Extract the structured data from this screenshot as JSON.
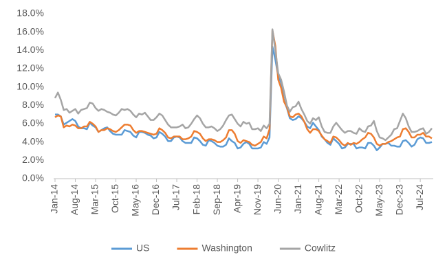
{
  "chart_data": {
    "type": "line",
    "categories": [
      "Jan-14",
      null,
      null,
      null,
      null,
      null,
      null,
      "Aug-14",
      null,
      null,
      null,
      null,
      null,
      null,
      "Mar-15",
      null,
      null,
      null,
      null,
      null,
      null,
      "Oct-15",
      null,
      null,
      null,
      null,
      null,
      null,
      "May-16",
      null,
      null,
      null,
      null,
      null,
      null,
      "Dec-16",
      null,
      null,
      null,
      null,
      null,
      null,
      "Jul-17",
      null,
      null,
      null,
      null,
      null,
      null,
      "Feb-18",
      null,
      null,
      null,
      null,
      null,
      null,
      "Sep-18",
      null,
      null,
      null,
      null,
      null,
      null,
      "Apr-19",
      null,
      null,
      null,
      null,
      null,
      null,
      "Nov-19",
      null,
      null,
      null,
      null,
      null,
      null,
      "Jun-20",
      null,
      null,
      null,
      null,
      null,
      null,
      "Jan-21",
      null,
      null,
      null,
      null,
      null,
      null,
      "Aug-21",
      null,
      null,
      null,
      null,
      null,
      null,
      "Mar-22",
      null,
      null,
      null,
      null,
      null,
      null,
      "Oct-22",
      null,
      null,
      null,
      null,
      null,
      null,
      "May-23",
      null,
      null,
      null,
      null,
      null,
      null,
      "Dec-23",
      null,
      null,
      null,
      null,
      null,
      null,
      "Jul-24",
      null,
      null,
      null,
      null
    ],
    "series": [
      {
        "name": "US",
        "color": "#5b9bd5",
        "values": [
          7.0,
          7.0,
          6.8,
          5.9,
          6.1,
          6.3,
          6.5,
          6.3,
          5.7,
          5.5,
          5.5,
          5.4,
          6.1,
          5.8,
          5.6,
          5.1,
          5.3,
          5.5,
          5.6,
          5.2,
          4.9,
          4.8,
          4.8,
          4.8,
          5.3,
          5.2,
          5.1,
          4.7,
          4.5,
          5.1,
          5.1,
          5.0,
          4.8,
          4.7,
          4.4,
          4.5,
          5.1,
          4.9,
          4.6,
          4.1,
          4.1,
          4.5,
          4.6,
          4.5,
          4.1,
          3.9,
          3.9,
          3.9,
          4.5,
          4.4,
          4.1,
          3.7,
          3.6,
          4.2,
          4.1,
          3.9,
          3.6,
          3.5,
          3.5,
          3.7,
          4.4,
          4.1,
          3.9,
          3.3,
          3.4,
          3.8,
          4.0,
          3.8,
          3.3,
          3.3,
          3.3,
          3.4,
          4.0,
          3.8,
          4.5,
          14.4,
          13.0,
          11.2,
          10.5,
          8.5,
          7.7,
          6.6,
          6.4,
          6.5,
          6.8,
          6.6,
          6.2,
          5.7,
          5.5,
          6.1,
          5.7,
          5.3,
          4.6,
          4.3,
          3.9,
          3.7,
          4.4,
          4.1,
          3.8,
          3.3,
          3.4,
          3.8,
          3.8,
          3.8,
          3.3,
          3.4,
          3.4,
          3.3,
          3.9,
          3.9,
          3.6,
          3.1,
          3.4,
          3.8,
          3.8,
          3.9,
          3.6,
          3.6,
          3.5,
          3.5,
          4.1,
          4.2,
          3.9,
          3.5,
          3.7,
          4.3,
          4.5,
          4.4,
          3.9,
          3.9,
          4.0
        ]
      },
      {
        "name": "Washington",
        "color": "#ed7d31",
        "values": [
          6.7,
          6.9,
          6.8,
          5.6,
          5.8,
          5.7,
          5.9,
          5.8,
          5.5,
          5.5,
          5.7,
          5.7,
          6.2,
          6.0,
          5.7,
          5.1,
          5.3,
          5.3,
          5.5,
          5.4,
          5.2,
          5.1,
          5.3,
          5.6,
          5.9,
          5.9,
          5.8,
          5.3,
          5.0,
          5.2,
          5.2,
          5.1,
          5.0,
          4.9,
          4.8,
          4.9,
          5.5,
          5.3,
          5.0,
          4.5,
          4.4,
          4.6,
          4.6,
          4.6,
          4.3,
          4.3,
          4.4,
          4.6,
          5.2,
          5.1,
          4.9,
          4.4,
          4.1,
          4.3,
          4.3,
          4.2,
          4.0,
          4.0,
          4.2,
          4.5,
          5.3,
          5.3,
          4.9,
          4.1,
          3.9,
          4.2,
          4.1,
          4.0,
          3.7,
          3.6,
          3.8,
          4.0,
          4.6,
          4.4,
          5.4,
          16.2,
          14.5,
          10.8,
          9.9,
          8.4,
          7.8,
          6.8,
          6.7,
          7.0,
          7.1,
          6.8,
          6.2,
          5.4,
          5.0,
          5.4,
          5.4,
          5.2,
          4.7,
          4.3,
          4.1,
          3.9,
          4.6,
          4.5,
          4.2,
          3.8,
          3.6,
          3.9,
          3.7,
          3.9,
          3.8,
          4.0,
          4.3,
          4.5,
          5.0,
          4.9,
          4.5,
          3.8,
          3.6,
          3.8,
          3.8,
          4.0,
          4.1,
          4.3,
          4.5,
          4.6,
          5.4,
          5.5,
          5.1,
          4.5,
          4.5,
          4.8,
          4.8,
          5.0,
          4.6,
          4.6,
          4.4
        ]
      },
      {
        "name": "Cowlitz",
        "color": "#a5a5a5",
        "values": [
          8.8,
          9.4,
          8.6,
          7.5,
          7.6,
          7.2,
          7.4,
          7.6,
          7.1,
          7.5,
          7.6,
          7.7,
          8.3,
          8.2,
          7.7,
          7.4,
          7.6,
          7.5,
          7.3,
          7.2,
          7.0,
          6.9,
          7.2,
          7.6,
          7.5,
          7.6,
          7.4,
          7.0,
          6.7,
          7.1,
          7.0,
          7.2,
          6.8,
          6.4,
          6.4,
          6.7,
          7.1,
          6.9,
          6.4,
          5.9,
          5.6,
          5.6,
          5.6,
          5.7,
          5.9,
          5.5,
          5.6,
          6.0,
          6.5,
          6.9,
          6.6,
          6.0,
          5.6,
          5.6,
          5.7,
          5.5,
          5.2,
          5.4,
          5.8,
          6.4,
          6.9,
          7.0,
          6.5,
          6.0,
          5.7,
          6.2,
          6.0,
          6.1,
          5.4,
          5.4,
          5.5,
          5.2,
          5.8,
          5.5,
          6.0,
          16.3,
          14.0,
          11.5,
          10.8,
          9.5,
          8.0,
          7.3,
          7.8,
          7.9,
          8.4,
          7.6,
          7.0,
          6.3,
          6.0,
          6.6,
          6.4,
          6.7,
          5.7,
          5.1,
          5.0,
          5.0,
          5.7,
          6.1,
          5.7,
          5.3,
          5.0,
          5.2,
          5.2,
          5.0,
          4.9,
          5.5,
          5.2,
          5.1,
          5.7,
          5.8,
          6.3,
          5.2,
          4.5,
          4.4,
          4.2,
          4.5,
          4.8,
          5.4,
          5.5,
          6.3,
          7.1,
          6.6,
          5.7,
          5.1,
          5.1,
          5.2,
          5.4,
          5.5,
          4.9,
          5.1,
          5.5
        ]
      }
    ],
    "ylim": [
      0,
      18
    ],
    "yticks": [
      {
        "value": 0,
        "label": "0.0%"
      },
      {
        "value": 2,
        "label": "2.0%"
      },
      {
        "value": 4,
        "label": "4.0%"
      },
      {
        "value": 6,
        "label": "6.0%"
      },
      {
        "value": 8,
        "label": "8.0%"
      },
      {
        "value": 10,
        "label": "10.0%"
      },
      {
        "value": 12,
        "label": "12.0%"
      },
      {
        "value": 14,
        "label": "14.0%"
      },
      {
        "value": 16,
        "label": "16.0%"
      },
      {
        "value": 18,
        "label": "18.0%"
      }
    ],
    "grid": false,
    "legend": "bottom"
  }
}
